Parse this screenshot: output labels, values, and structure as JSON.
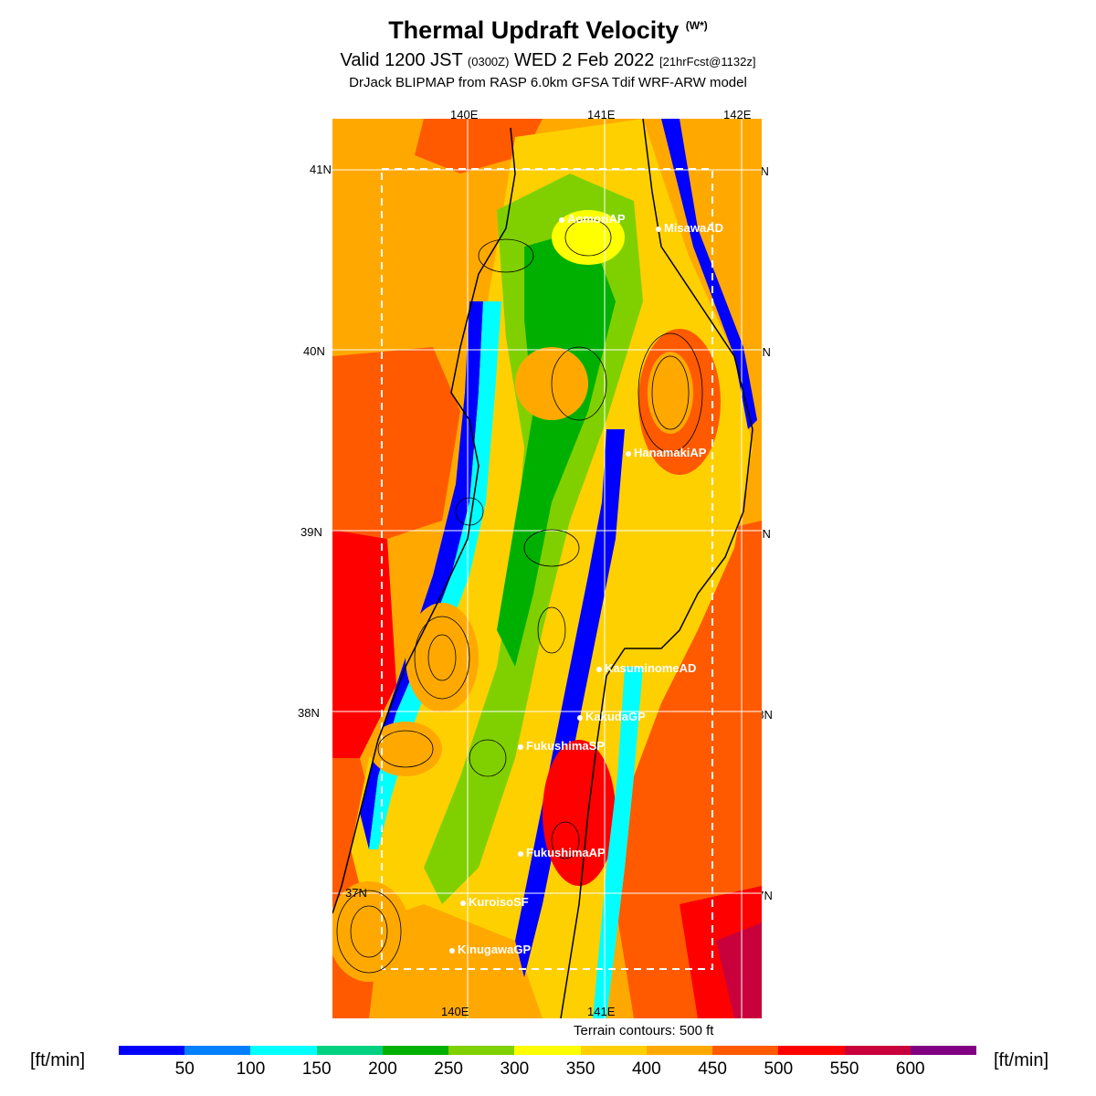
{
  "title": {
    "main": "Thermal Updraft Velocity",
    "symbol": "(W*)"
  },
  "subtitle": {
    "valid": "Valid 1200 JST",
    "zulu": "(0300Z)",
    "date": "WED 2 Feb 2022",
    "fcst": "[21hrFcst@1132z]"
  },
  "model_line": "DrJack BLIPMAP from RASP 6.0km GFSA Tdif WRF-ARW model",
  "lon_labels_top": [
    "140E",
    "141E",
    "142E"
  ],
  "lon_labels_bottom": [
    "140E",
    "141E"
  ],
  "lat_labels": [
    "41N",
    "40N",
    "39N",
    "38N",
    "37N"
  ],
  "locations": [
    {
      "name": "AomoriAP"
    },
    {
      "name": "MisawaAD"
    },
    {
      "name": "HanamakiAP"
    },
    {
      "name": "KasuminomeAD"
    },
    {
      "name": "KakudaGP"
    },
    {
      "name": "FukushimaSP"
    },
    {
      "name": "FukushimaAP"
    },
    {
      "name": "KuroisoSF"
    },
    {
      "name": "KinugawaGP"
    }
  ],
  "terrain_note": "Terrain contours: 500 ft",
  "colorbar": {
    "unit": "[ft/min]",
    "labels": [
      "50",
      "100",
      "150",
      "200",
      "250",
      "300",
      "350",
      "400",
      "450",
      "500",
      "550",
      "600"
    ],
    "colors": [
      "#0000ff",
      "#0080ff",
      "#00ffff",
      "#00d080",
      "#00b000",
      "#80d000",
      "#ffff00",
      "#ffd000",
      "#ffa900",
      "#ff5a00",
      "#ff0000",
      "#c8003c",
      "#820082"
    ]
  }
}
